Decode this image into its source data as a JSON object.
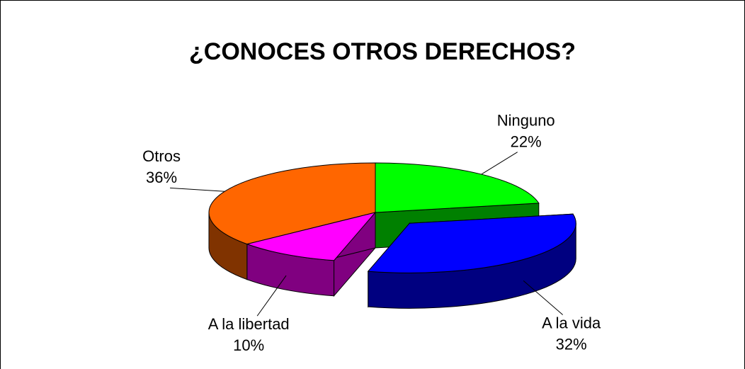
{
  "chart_data": {
    "type": "pie3d",
    "title": "¿CONOCES OTROS DERECHOS?",
    "categories": [
      "Ninguno",
      "A la vida",
      "A la libertad",
      "Otros"
    ],
    "values": [
      22,
      32,
      10,
      36
    ],
    "value_labels": [
      "22%",
      "32%",
      "10%",
      "36%"
    ],
    "colors": [
      "#00ff00",
      "#0000ff",
      "#ff00ff",
      "#ff6600"
    ],
    "explode": [
      0,
      0.3,
      0,
      0
    ]
  }
}
